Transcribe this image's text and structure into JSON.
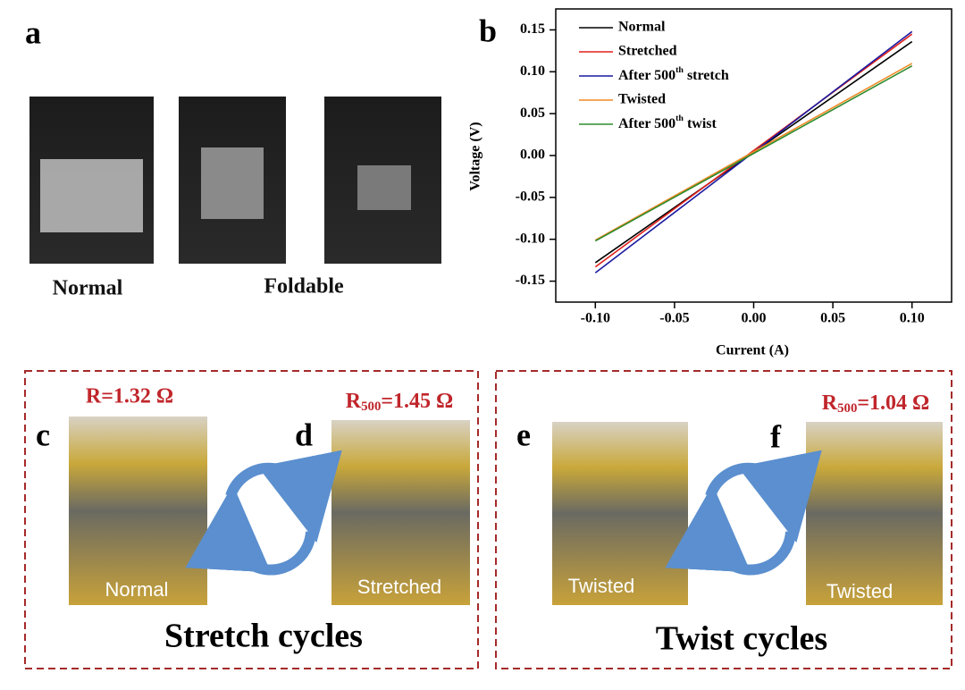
{
  "panels": {
    "a": {
      "label": "a",
      "captions": [
        "Normal",
        "Foldable"
      ]
    },
    "b": {
      "label": "b"
    },
    "c": {
      "label": "c",
      "resistance": "R=1.32 Ω",
      "photo_label": "Normal"
    },
    "d": {
      "label": "d",
      "resistance": "R500=1.45 Ω",
      "photo_label": "Stretched"
    },
    "e": {
      "label": "e",
      "photo_label": "Twisted"
    },
    "f": {
      "label": "f",
      "resistance": "R500=1.04 Ω",
      "photo_label": "Twisted"
    }
  },
  "groups": [
    {
      "title": "Stretch cycles"
    },
    {
      "title": "Twist cycles"
    }
  ],
  "chart_data": {
    "type": "line",
    "x_label": "Current (A)",
    "y_label": "Voltage (V)",
    "x": [
      -0.1,
      0.1
    ],
    "series": [
      {
        "name": "Normal",
        "color": "#000000",
        "values": [
          -0.128,
          0.136
        ]
      },
      {
        "name": "Stretched",
        "color": "#e0201b",
        "values": [
          -0.133,
          0.145
        ]
      },
      {
        "name": "After 500th stretch",
        "color": "#1a1aa0",
        "values": [
          -0.14,
          0.148
        ]
      },
      {
        "name": "Twisted",
        "color": "#f08a24",
        "values": [
          -0.101,
          0.11
        ]
      },
      {
        "name": "After 500th twist",
        "color": "#2e8b2e",
        "values": [
          -0.102,
          0.107
        ]
      }
    ],
    "xlim": [
      -0.125,
      0.125
    ],
    "xticks": [
      {
        "value": -0.1,
        "label": "-0.10"
      },
      {
        "value": -0.05,
        "label": "-0.05"
      },
      {
        "value": 0,
        "label": "0.00"
      },
      {
        "value": 0.05,
        "label": "0.05"
      },
      {
        "value": 0.1,
        "label": "0.10"
      }
    ],
    "ylim": [
      -0.175,
      0.175
    ],
    "yticks": [
      {
        "value": -0.15,
        "label": "-0.15"
      },
      {
        "value": -0.1,
        "label": "-0.10"
      },
      {
        "value": -0.05,
        "label": "-0.05"
      },
      {
        "value": 0,
        "label": "0.00"
      },
      {
        "value": 0.05,
        "label": "0.05"
      },
      {
        "value": 0.1,
        "label": "0.10"
      },
      {
        "value": 0.15,
        "label": "0.15"
      }
    ],
    "legend": "upper left"
  }
}
